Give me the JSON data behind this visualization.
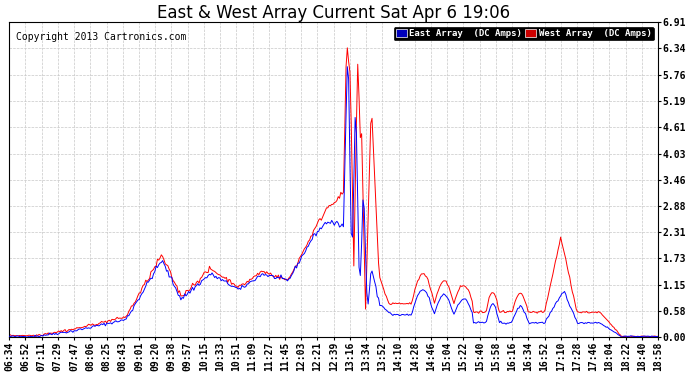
{
  "title": "East & West Array Current Sat Apr 6 19:06",
  "copyright": "Copyright 2013 Cartronics.com",
  "east_label": "East Array  (DC Amps)",
  "west_label": "West Array  (DC Amps)",
  "east_color": "#0000ff",
  "west_color": "#ff0000",
  "legend_east_bg": "#0000bb",
  "legend_west_bg": "#cc0000",
  "yticks": [
    0.0,
    0.58,
    1.15,
    1.73,
    2.31,
    2.88,
    3.46,
    4.03,
    4.61,
    5.19,
    5.76,
    6.34,
    6.91
  ],
  "ylim": [
    0.0,
    6.91
  ],
  "background_color": "#ffffff",
  "plot_bg": "#ffffff",
  "grid_color": "#c8c8c8",
  "title_fontsize": 12,
  "tick_fontsize": 7,
  "copyright_fontsize": 7,
  "xtick_labels": [
    "06:34",
    "06:52",
    "07:11",
    "07:29",
    "07:47",
    "08:06",
    "08:25",
    "08:43",
    "09:01",
    "09:20",
    "09:38",
    "09:57",
    "10:15",
    "10:33",
    "10:51",
    "11:09",
    "11:27",
    "11:45",
    "12:03",
    "12:21",
    "12:39",
    "13:16",
    "13:34",
    "13:52",
    "14:10",
    "14:28",
    "14:46",
    "15:04",
    "15:22",
    "15:40",
    "15:58",
    "16:16",
    "16:34",
    "16:52",
    "17:10",
    "17:28",
    "17:46",
    "18:04",
    "18:22",
    "18:40",
    "18:58"
  ]
}
